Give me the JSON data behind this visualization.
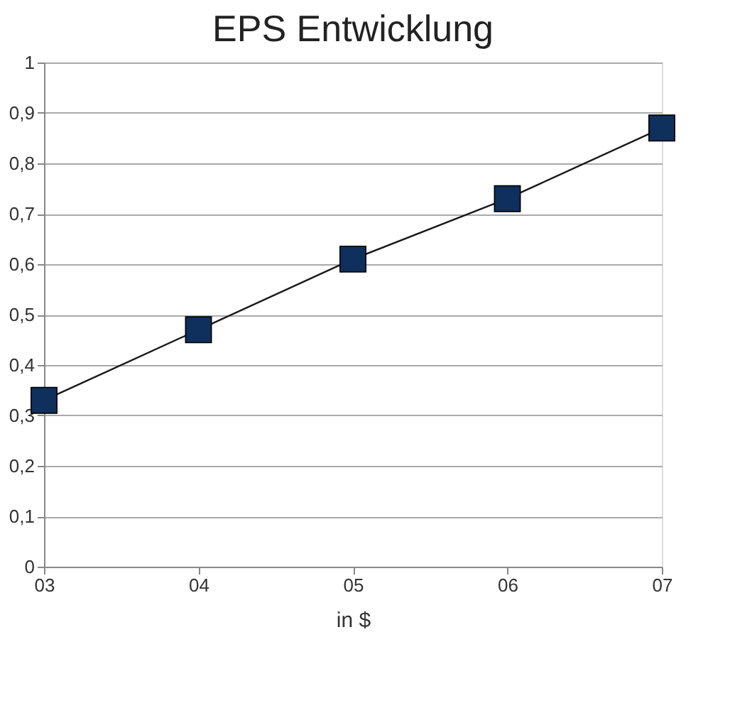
{
  "chart_data": {
    "type": "line",
    "title": "EPS Entwicklung",
    "xlabel": "in $",
    "categories": [
      "03",
      "04",
      "05",
      "06",
      "07"
    ],
    "series": [
      {
        "color": "#0f2f5c",
        "values": [
          0.33,
          0.47,
          0.61,
          0.73,
          0.87
        ]
      }
    ],
    "ylim": [
      0,
      1
    ],
    "yticks": [
      0,
      {
        "value": 0.1,
        "label": "0,1"
      },
      {
        "value": 0.2,
        "label": "0,2"
      },
      {
        "value": 0.3,
        "label": "0,3"
      },
      {
        "value": 0.4,
        "label": "0,4"
      },
      {
        "value": 0.5,
        "label": "0,5"
      },
      {
        "value": 0.6,
        "label": "0,6"
      },
      {
        "value": 0.7,
        "label": "0,7"
      },
      {
        "value": 0.8,
        "label": "0,8"
      },
      {
        "value": 0.9,
        "label": "0,9"
      },
      1
    ],
    "grid": "y",
    "marker": "square",
    "line_style": "solid"
  }
}
